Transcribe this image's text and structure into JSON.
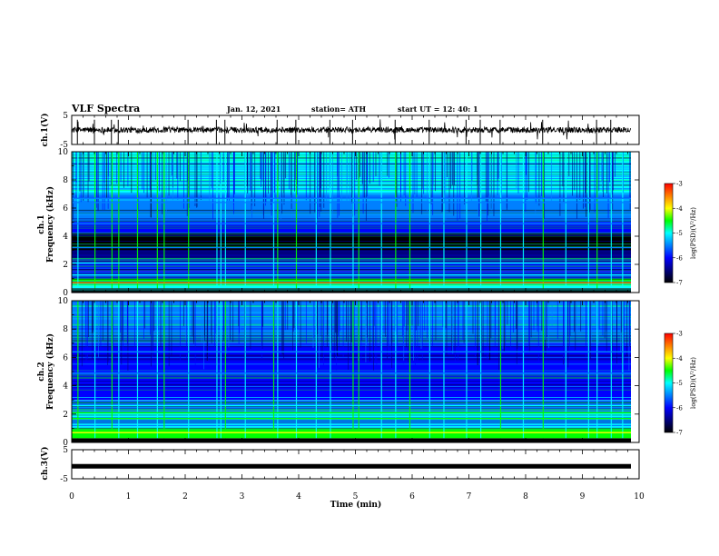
{
  "header": {
    "title": "VLF Spectra",
    "date": "Jan. 12, 2021",
    "station": "station= ATH",
    "start": "start  UT =   12: 40: 1"
  },
  "colorbar": {
    "label": "log(PSD)(V²/Hz)",
    "ticks": [
      "-3",
      "-4",
      "-5",
      "-6",
      "-7"
    ],
    "colors": [
      "#ff0000",
      "#ff8000",
      "#ffff00",
      "#00ff00",
      "#00ffff",
      "#0080ff",
      "#0000ff",
      "#000080",
      "#000000"
    ]
  },
  "chart_data": [
    {
      "type": "line",
      "panel": "ch.1 time series",
      "ylabel": "ch.1(V)",
      "yticks": [
        "5",
        "-5"
      ],
      "ylim": [
        -5,
        5
      ],
      "xlim": [
        0,
        10
      ],
      "baseline": 0
    },
    {
      "type": "heatmap",
      "panel": "ch.1 spectrogram",
      "ylabel": "ch.1\nFrequency (kHz)",
      "xlim": [
        0,
        9.85
      ],
      "ylim": [
        0,
        10
      ],
      "yticks": [
        "0",
        "2",
        "4",
        "6",
        "8",
        "10"
      ],
      "zlim": [
        -7,
        -3
      ],
      "bands": [
        {
          "f": [
            0.0,
            0.3
          ],
          "logPSD": -7.0
        },
        {
          "f": [
            0.3,
            0.5
          ],
          "logPSD": -5.2
        },
        {
          "f": [
            0.5,
            1.0
          ],
          "logPSD": -4.3
        },
        {
          "f": [
            1.0,
            1.5
          ],
          "logPSD": -5.8
        },
        {
          "f": [
            1.5,
            2.2
          ],
          "logPSD": -6.0
        },
        {
          "f": [
            2.2,
            3.0
          ],
          "logPSD": -6.4
        },
        {
          "f": [
            3.0,
            4.2
          ],
          "logPSD": -6.9
        },
        {
          "f": [
            4.2,
            5.0
          ],
          "logPSD": -6.2
        },
        {
          "f": [
            5.0,
            7.0
          ],
          "logPSD": -5.5
        },
        {
          "f": [
            7.0,
            10.0
          ],
          "logPSD": -5.2
        }
      ],
      "lines": [
        {
          "f": 0.7,
          "logPSD": -3.6
        },
        {
          "f": 1.25,
          "logPSD": -5.0
        },
        {
          "f": 2.1,
          "logPSD": -4.9
        },
        {
          "f": 3.2,
          "logPSD": -5.4
        },
        {
          "f": 4.9,
          "logPSD": -5.3
        },
        {
          "f": 6.4,
          "logPSD": -5.3
        },
        {
          "f": 6.7,
          "logPSD": -5.3
        }
      ],
      "bursts_min": [
        0.1,
        0.4,
        0.7,
        0.82,
        1.15,
        1.5,
        1.62,
        2.05,
        2.55,
        2.62,
        2.7,
        3.05,
        3.55,
        3.62,
        3.95,
        4.3,
        4.55,
        4.95,
        5.05,
        5.45,
        5.7,
        5.95,
        6.3,
        6.55,
        6.95,
        7.2,
        7.55,
        7.95,
        8.3,
        8.7,
        9.1,
        9.25,
        9.5,
        9.7
      ]
    },
    {
      "type": "heatmap",
      "panel": "ch.2 spectrogram",
      "ylabel": "ch.2\nFrequency (kHz)",
      "xlim": [
        0,
        9.85
      ],
      "ylim": [
        0,
        10
      ],
      "yticks": [
        "0",
        "2",
        "4",
        "6",
        "8",
        "10"
      ],
      "zlim": [
        -7,
        -3
      ],
      "bands": [
        {
          "f": [
            0.0,
            0.3
          ],
          "logPSD": -7.0
        },
        {
          "f": [
            0.3,
            1.0
          ],
          "logPSD": -4.5
        },
        {
          "f": [
            1.0,
            2.2
          ],
          "logPSD": -5.0
        },
        {
          "f": [
            2.2,
            3.0
          ],
          "logPSD": -5.6
        },
        {
          "f": [
            3.0,
            4.2
          ],
          "logPSD": -6.1
        },
        {
          "f": [
            4.2,
            7.0
          ],
          "logPSD": -5.9
        },
        {
          "f": [
            7.0,
            10.0
          ],
          "logPSD": -5.5
        }
      ],
      "lines": [
        {
          "f": 0.7,
          "logPSD": -3.8
        },
        {
          "f": 1.7,
          "logPSD": -4.4
        },
        {
          "f": 2.1,
          "logPSD": -4.6
        },
        {
          "f": 2.6,
          "logPSD": -5.2
        },
        {
          "f": 4.9,
          "logPSD": -5.4
        },
        {
          "f": 6.4,
          "logPSD": -5.5
        }
      ],
      "bursts_min": [
        0.1,
        0.4,
        0.7,
        0.82,
        1.15,
        1.5,
        1.62,
        2.05,
        2.55,
        2.62,
        2.7,
        3.05,
        3.55,
        3.62,
        3.95,
        4.3,
        4.55,
        4.95,
        5.05,
        5.45,
        5.7,
        5.95,
        6.3,
        6.55,
        6.95,
        7.2,
        7.55,
        7.95,
        8.3,
        8.7,
        9.1,
        9.25,
        9.5,
        9.7
      ]
    },
    {
      "type": "line",
      "panel": "ch.3 time series",
      "ylabel": "ch.3(V)",
      "yticks": [
        "5",
        "-5"
      ],
      "ylim": [
        -5,
        5
      ],
      "xlim": [
        0,
        10
      ],
      "baseline": -0.7
    }
  ],
  "xaxis": {
    "label": "Time (min)",
    "ticks": [
      "0",
      "1",
      "2",
      "3",
      "4",
      "5",
      "6",
      "7",
      "8",
      "9",
      "10"
    ],
    "range": [
      0,
      10
    ]
  }
}
